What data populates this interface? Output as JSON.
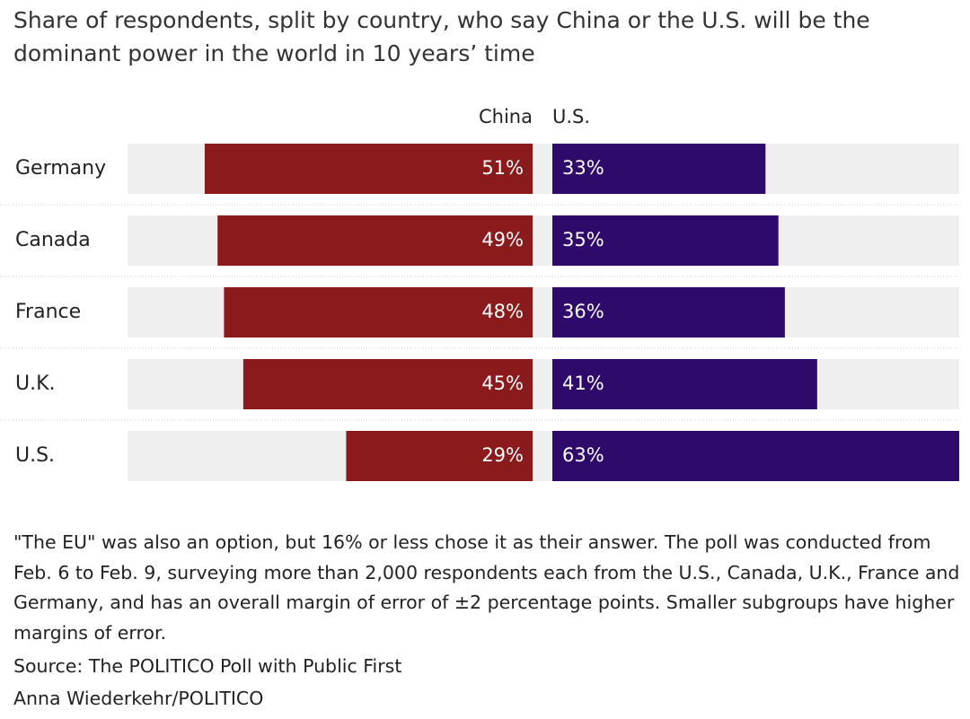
{
  "chart_data": {
    "type": "bar",
    "orientation": "diverging",
    "title": "Share of respondents, split by country, who say China or the U.S. will be the dominant power in the world in 10 years’ time",
    "categories": [
      "Germany",
      "Canada",
      "France",
      "U.K.",
      "U.S."
    ],
    "series": [
      {
        "name": "China",
        "color": "#8b1a1c",
        "values": [
          51,
          49,
          48,
          45,
          29
        ],
        "value_labels": [
          "51%",
          "49%",
          "48%",
          "45%",
          "29%"
        ]
      },
      {
        "name": "U.S.",
        "color": "#2e0a6b",
        "values": [
          33,
          35,
          36,
          41,
          63
        ],
        "value_labels": [
          "33%",
          "35%",
          "36%",
          "41%",
          "63%"
        ]
      }
    ],
    "xlim": [
      0,
      63
    ],
    "note": "\"The EU\" was also an option, but 16% or less chose it as their answer. The poll was conducted from Feb. 6 to Feb. 9, surveying more than 2,000 respondents each from the U.S., Canada, U.K., France and Germany, and has an overall margin of error of ±2 percentage points. Smaller subgroups have higher margins of error.",
    "source": "Source: The POLITICO Poll with Public First",
    "credit": "Anna Wiederkehr/POLITICO"
  }
}
